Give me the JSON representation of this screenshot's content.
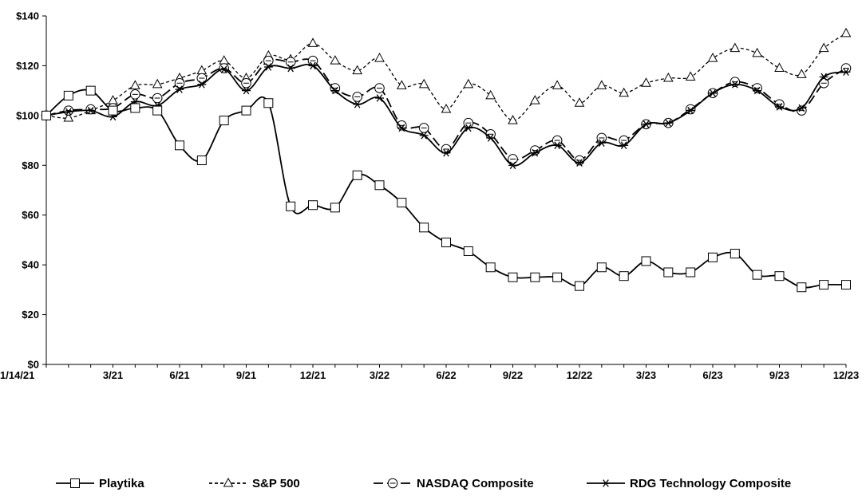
{
  "chart_data": {
    "type": "line",
    "title": "",
    "xlabel": "",
    "ylabel": "",
    "ylim": [
      0,
      140
    ],
    "y_ticks": [
      0,
      20,
      40,
      60,
      80,
      100,
      120,
      140
    ],
    "y_tick_labels": [
      "$0",
      "$20",
      "$40",
      "$60",
      "$80",
      "$100",
      "$120",
      "$140"
    ],
    "x_tick_labels": [
      "1/14/21",
      "3/21",
      "6/21",
      "9/21",
      "12/21",
      "3/22",
      "6/22",
      "9/22",
      "12/22",
      "3/23",
      "6/23",
      "9/23",
      "12/23"
    ],
    "x_tick_index": [
      0,
      3,
      6,
      9,
      12,
      15,
      18,
      21,
      24,
      27,
      30,
      33,
      36
    ],
    "x_count": 37,
    "grid": false,
    "legend_position": "bottom",
    "series": [
      {
        "name": "Playtika",
        "line_style": "solid",
        "marker": "square",
        "values": [
          100,
          108,
          110,
          102,
          103,
          102,
          88,
          82,
          98,
          102,
          105,
          63.5,
          64,
          63,
          76,
          72,
          65,
          55,
          49,
          45.5,
          39,
          35,
          35,
          35,
          31.5,
          39,
          35.5,
          41.5,
          37,
          37,
          43,
          44.5,
          36,
          35.5,
          31,
          32,
          32
        ]
      },
      {
        "name": "S&P 500",
        "line_style": "dashed",
        "marker": "triangle",
        "values": [
          100,
          99,
          102,
          106,
          112,
          112.5,
          115,
          118,
          122,
          115,
          124,
          122.5,
          129,
          122,
          118,
          123,
          112,
          112.5,
          102.5,
          112.5,
          108,
          98,
          106,
          112,
          105,
          112,
          109,
          113,
          115,
          115.5,
          123,
          127,
          125,
          119,
          116.5,
          127,
          133
        ]
      },
      {
        "name": "NASDAQ Composite",
        "line_style": "longdash",
        "marker": "circle",
        "values": [
          100,
          102,
          102.5,
          103,
          108.5,
          107,
          113,
          115,
          119,
          113,
          122,
          121.5,
          122,
          111,
          107.5,
          111,
          96,
          95,
          86.5,
          97,
          92.5,
          82.5,
          86,
          90,
          82,
          91,
          90,
          96.5,
          97,
          102.5,
          109,
          113.5,
          111,
          104.5,
          102,
          113,
          119
        ]
      },
      {
        "name": "RDG Technology Composite",
        "line_style": "solid",
        "marker": "asterisk",
        "values": [
          100,
          101.5,
          102,
          99.5,
          105.5,
          104,
          110.5,
          112.5,
          118.5,
          110,
          119.5,
          119,
          120,
          110,
          104.5,
          107,
          95,
          92,
          85,
          95,
          91,
          80,
          85,
          88,
          81,
          89,
          88,
          96.5,
          97,
          102,
          109,
          112.5,
          110,
          103.5,
          103,
          115.5,
          117.5
        ]
      }
    ]
  }
}
